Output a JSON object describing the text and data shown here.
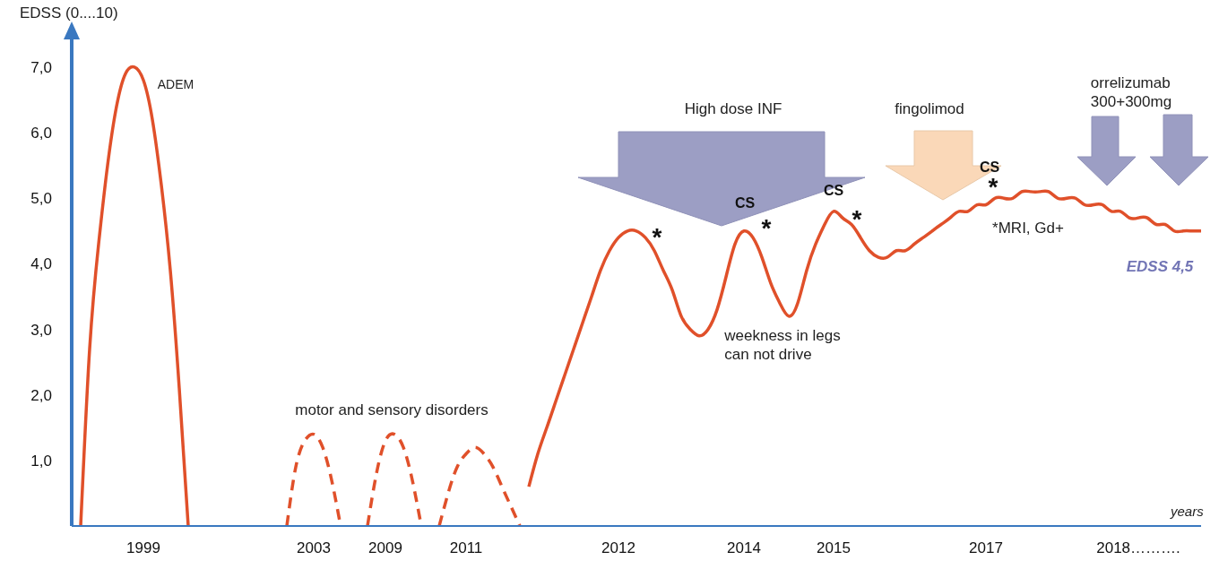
{
  "chart_data": {
    "type": "line",
    "ylabel": "EDSS (0....10)",
    "xlabel": "years",
    "ylim": [
      0,
      7.6
    ],
    "yticks": [
      {
        "value": 1,
        "label": "1,0"
      },
      {
        "value": 2,
        "label": "2,0"
      },
      {
        "value": 3,
        "label": "3,0"
      },
      {
        "value": 4,
        "label": "4,0"
      },
      {
        "value": 5,
        "label": "5,0"
      },
      {
        "value": 6,
        "label": "6,0"
      },
      {
        "value": 7,
        "label": "7,0"
      }
    ],
    "marker": "none",
    "categories": [
      null,
      null,
      null,
      null,
      null,
      null,
      null,
      null,
      "1999",
      null,
      null,
      null,
      null,
      null,
      null,
      null,
      null,
      null,
      null,
      null,
      null,
      null,
      null,
      null,
      null,
      null,
      null,
      "2003",
      null,
      null,
      null,
      null,
      null,
      null,
      null,
      "2009",
      null,
      null,
      null,
      null,
      null,
      null,
      null,
      null,
      "2011",
      null,
      null,
      null,
      null,
      null,
      null,
      null,
      null,
      null,
      null,
      null,
      null,
      null,
      null,
      null,
      null,
      "2012",
      null,
      null,
      null,
      null,
      null,
      null,
      null,
      null,
      null,
      null,
      null,
      null,
      null,
      "2014",
      null,
      null,
      null,
      null,
      null,
      null,
      null,
      null,
      null,
      "2015",
      null,
      null,
      null,
      null,
      null,
      null,
      null,
      null,
      null,
      null,
      null,
      null,
      null,
      null,
      null,
      null,
      "2017",
      null,
      null,
      null,
      null,
      null,
      null,
      null,
      null,
      null,
      null,
      null,
      null,
      null,
      null,
      null,
      null,
      "2018……….",
      null,
      null,
      null,
      null,
      null,
      null,
      null
    ],
    "series": [
      {
        "color": "#e0502a",
        "line_style": "solid",
        "values": [
          null,
          0,
          2.7,
          4.3,
          5.5,
          6.4,
          6.9,
          7.0,
          6.8,
          6.2,
          5.2,
          3.9,
          2.1,
          0,
          null,
          null,
          null,
          null,
          null,
          null,
          null,
          null,
          null,
          null,
          null,
          null,
          null,
          null,
          null,
          null,
          null,
          null,
          null,
          null,
          null,
          null,
          null,
          null,
          null,
          null,
          null,
          null,
          null,
          null,
          null,
          null,
          null,
          null,
          null,
          null,
          null,
          null,
          null,
          null,
          null,
          null,
          null,
          null,
          null,
          null,
          null,
          null,
          null,
          null,
          null,
          null,
          null,
          null,
          null,
          null,
          null,
          null,
          null,
          null,
          null,
          null,
          null,
          null,
          null,
          null,
          null,
          null,
          null,
          null,
          null,
          null,
          null,
          null,
          null,
          null,
          null,
          null,
          null,
          null,
          null,
          null,
          null,
          null,
          null,
          null,
          null,
          null,
          null,
          null,
          null,
          null,
          null,
          null,
          null,
          null,
          null,
          null,
          null,
          null,
          null,
          null,
          null,
          null,
          null,
          null,
          null,
          null,
          null,
          null,
          null,
          null,
          null
        ]
      },
      {
        "color": "#e0502a",
        "line_style": "dashed",
        "values": [
          null,
          null,
          null,
          null,
          null,
          null,
          null,
          null,
          null,
          null,
          null,
          null,
          null,
          null,
          null,
          null,
          null,
          null,
          null,
          null,
          null,
          null,
          null,
          null,
          0,
          0.9,
          1.3,
          1.4,
          1.2,
          0.7,
          0,
          null,
          null,
          0,
          0.8,
          1.3,
          1.4,
          1.2,
          0.7,
          0,
          null,
          0,
          0.5,
          0.9,
          1.1,
          1.2,
          1.1,
          0.9,
          0.6,
          0.3,
          0,
          null,
          null,
          null,
          null,
          null,
          null,
          null,
          null,
          null,
          null,
          null,
          null,
          null,
          null,
          null,
          null,
          null,
          null,
          null,
          null,
          null,
          null,
          null,
          null,
          null,
          null,
          null,
          null,
          null,
          null,
          null,
          null,
          null,
          null,
          null,
          null,
          null,
          null,
          null,
          null,
          null,
          null,
          null,
          null,
          null,
          null,
          null,
          null,
          null,
          null,
          null,
          null,
          null,
          null,
          null,
          null,
          null,
          null,
          null,
          null,
          null,
          null,
          null,
          null,
          null,
          null,
          null,
          null,
          null,
          null,
          null,
          null,
          null,
          null,
          null,
          null
        ]
      },
      {
        "color": "#e0502a",
        "line_style": "solid",
        "values": [
          null,
          null,
          null,
          null,
          null,
          null,
          null,
          null,
          null,
          null,
          null,
          null,
          null,
          null,
          null,
          null,
          null,
          null,
          null,
          null,
          null,
          null,
          null,
          null,
          null,
          null,
          null,
          null,
          null,
          null,
          null,
          null,
          null,
          null,
          null,
          null,
          null,
          null,
          null,
          null,
          null,
          null,
          null,
          null,
          null,
          null,
          null,
          null,
          null,
          null,
          null,
          0.6,
          1.1,
          1.5,
          1.9,
          2.3,
          2.7,
          3.1,
          3.5,
          3.9,
          4.2,
          4.4,
          4.5,
          4.5,
          4.4,
          4.2,
          3.9,
          3.6,
          3.2,
          3.0,
          2.9,
          3.0,
          3.3,
          3.8,
          4.3,
          4.5,
          4.4,
          4.1,
          3.7,
          3.4,
          3.2,
          3.4,
          3.9,
          4.3,
          4.6,
          4.8,
          4.7,
          4.6,
          4.4,
          4.2,
          4.1,
          4.1,
          4.2,
          4.2,
          4.3,
          4.4,
          4.5,
          4.6,
          4.7,
          4.8,
          4.8,
          4.9,
          4.9,
          5.0,
          5.0,
          5.0,
          5.1,
          5.1,
          5.1,
          5.1,
          5.0,
          5.0,
          5.0,
          4.9,
          4.9,
          4.9,
          4.8,
          4.8,
          4.7,
          4.7,
          4.7,
          4.6,
          4.6,
          4.5,
          4.5,
          4.5,
          4.5
        ]
      }
    ],
    "annotations": [
      "ADEM",
      "motor and sensory disorders",
      "High dose INF",
      "CS",
      "CS",
      "CS",
      "*",
      "*",
      "*",
      "*",
      "weekness in legs\ncan not drive",
      "fingolimod",
      "orrelizumab\n300+300mg",
      "*MRI, Gd+",
      "EDSS 4,5"
    ]
  }
}
